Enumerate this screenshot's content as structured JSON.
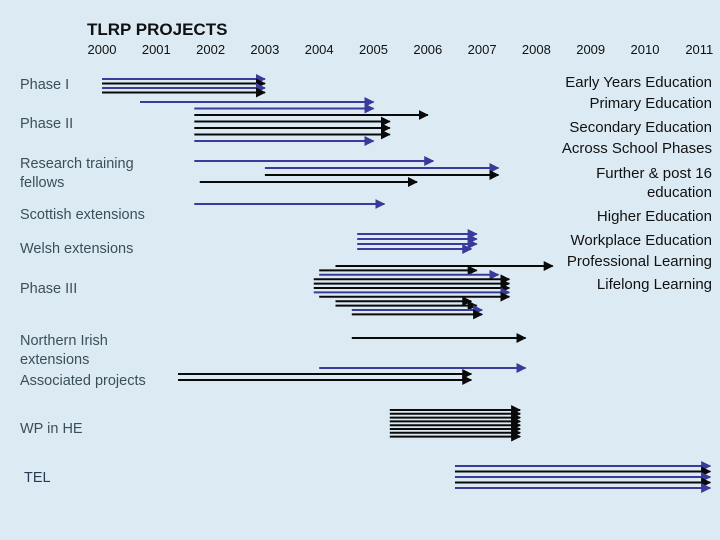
{
  "title": "TLRP PROJECTS",
  "years": [
    "2000",
    "2001",
    "2002",
    "2003",
    "2004",
    "2005",
    "2006",
    "2007",
    "2008",
    "2009",
    "2010",
    "2011"
  ],
  "rows": [
    {
      "label": "Phase I"
    },
    {
      "label": "Phase II"
    },
    {
      "label": "Research training fellows"
    },
    {
      "label": "Scottish extensions"
    },
    {
      "label": "Welsh extensions"
    },
    {
      "label": "Phase III"
    },
    {
      "label": "Northern Irish extensions"
    },
    {
      "label": "Associated projects"
    },
    {
      "label": "WP in HE"
    },
    {
      "label": "TEL"
    }
  ],
  "sectors": [
    "Early Years Education",
    "Primary Education",
    "Secondary Education",
    "Across School Phases",
    "Further & post 16",
    "education",
    "Higher Education",
    "Workplace Education",
    "Professional Learning",
    "Lifelong Learning"
  ],
  "colors": {
    "blue": "#3a3a9a",
    "black": "#0a0a0a",
    "background": "#dcebf3"
  },
  "projects": [
    {
      "row": 0,
      "start": 2000.0,
      "end": 2003.0,
      "color": "blue"
    },
    {
      "row": 0,
      "start": 2000.0,
      "end": 2003.0,
      "color": "black"
    },
    {
      "row": 0,
      "start": 2000.0,
      "end": 2003.0,
      "color": "blue"
    },
    {
      "row": 0,
      "start": 2000.0,
      "end": 2003.0,
      "color": "black"
    },
    {
      "row": 1,
      "start": 2000.7,
      "end": 2005.0,
      "color": "blue"
    },
    {
      "row": 1,
      "start": 2001.7,
      "end": 2005.0,
      "color": "blue"
    },
    {
      "row": 1,
      "start": 2001.7,
      "end": 2006.0,
      "color": "black"
    },
    {
      "row": 1,
      "start": 2001.7,
      "end": 2005.3,
      "color": "black"
    },
    {
      "row": 1,
      "start": 2001.7,
      "end": 2005.3,
      "color": "black"
    },
    {
      "row": 1,
      "start": 2001.7,
      "end": 2005.3,
      "color": "black"
    },
    {
      "row": 1,
      "start": 2001.7,
      "end": 2005.0,
      "color": "blue"
    },
    {
      "row": 2,
      "start": 2001.7,
      "end": 2006.1,
      "color": "blue"
    },
    {
      "row": 2,
      "start": 2003.0,
      "end": 2007.3,
      "color": "blue"
    },
    {
      "row": 2,
      "start": 2003.0,
      "end": 2007.3,
      "color": "black"
    },
    {
      "row": 2,
      "start": 2001.8,
      "end": 2005.8,
      "color": "black"
    },
    {
      "row": 3,
      "start": 2001.7,
      "end": 2005.2,
      "color": "blue"
    },
    {
      "row": 4,
      "start": 2004.7,
      "end": 2006.9,
      "color": "blue"
    },
    {
      "row": 4,
      "start": 2004.7,
      "end": 2006.9,
      "color": "blue"
    },
    {
      "row": 4,
      "start": 2004.7,
      "end": 2006.9,
      "color": "blue"
    },
    {
      "row": 4,
      "start": 2004.7,
      "end": 2006.8,
      "color": "blue"
    },
    {
      "row": 5,
      "start": 2004.3,
      "end": 2008.3,
      "color": "black"
    },
    {
      "row": 5,
      "start": 2004.0,
      "end": 2006.9,
      "color": "black"
    },
    {
      "row": 5,
      "start": 2004.0,
      "end": 2007.3,
      "color": "blue"
    },
    {
      "row": 5,
      "start": 2003.9,
      "end": 2007.5,
      "color": "black"
    },
    {
      "row": 5,
      "start": 2003.9,
      "end": 2007.5,
      "color": "black"
    },
    {
      "row": 5,
      "start": 2003.9,
      "end": 2007.5,
      "color": "black"
    },
    {
      "row": 5,
      "start": 2003.9,
      "end": 2007.5,
      "color": "blue"
    },
    {
      "row": 5,
      "start": 2004.0,
      "end": 2007.5,
      "color": "black"
    },
    {
      "row": 5,
      "start": 2004.3,
      "end": 2006.8,
      "color": "black"
    },
    {
      "row": 5,
      "start": 2004.3,
      "end": 2006.9,
      "color": "black"
    },
    {
      "row": 5,
      "start": 2004.6,
      "end": 2007.0,
      "color": "blue"
    },
    {
      "row": 5,
      "start": 2004.6,
      "end": 2007.0,
      "color": "black"
    },
    {
      "row": 6,
      "start": 2004.6,
      "end": 2007.8,
      "color": "black"
    },
    {
      "row": 7,
      "start": 2004.0,
      "end": 2007.8,
      "color": "blue"
    },
    {
      "row": 7,
      "start": 2001.4,
      "end": 2006.8,
      "color": "black"
    },
    {
      "row": 7,
      "start": 2001.4,
      "end": 2006.8,
      "color": "black"
    },
    {
      "row": 8,
      "start": 2005.3,
      "end": 2007.7,
      "color": "black"
    },
    {
      "row": 8,
      "start": 2005.3,
      "end": 2007.7,
      "color": "black"
    },
    {
      "row": 8,
      "start": 2005.3,
      "end": 2007.7,
      "color": "black"
    },
    {
      "row": 8,
      "start": 2005.3,
      "end": 2007.7,
      "color": "black"
    },
    {
      "row": 8,
      "start": 2005.3,
      "end": 2007.7,
      "color": "black"
    },
    {
      "row": 8,
      "start": 2005.3,
      "end": 2007.7,
      "color": "black"
    },
    {
      "row": 8,
      "start": 2005.3,
      "end": 2007.7,
      "color": "black"
    },
    {
      "row": 8,
      "start": 2005.3,
      "end": 2007.7,
      "color": "black"
    },
    {
      "row": 9,
      "start": 2006.5,
      "end": 2011.2,
      "color": "blue"
    },
    {
      "row": 9,
      "start": 2006.5,
      "end": 2011.2,
      "color": "black"
    },
    {
      "row": 9,
      "start": 2006.5,
      "end": 2011.2,
      "color": "blue"
    },
    {
      "row": 9,
      "start": 2006.5,
      "end": 2011.2,
      "color": "black"
    },
    {
      "row": 9,
      "start": 2006.5,
      "end": 2011.2,
      "color": "blue"
    }
  ]
}
